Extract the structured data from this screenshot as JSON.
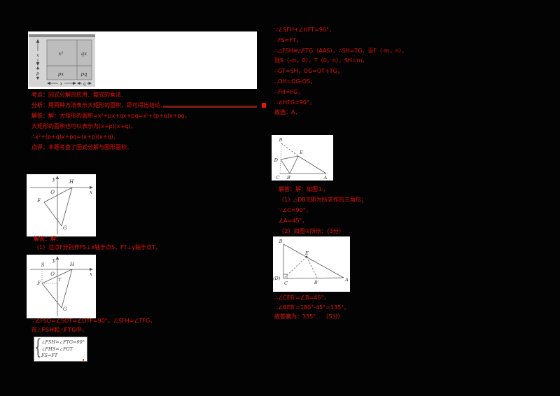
{
  "colors": {
    "background": "#030303",
    "panel": "#ffffff",
    "red_text": "#e8130a",
    "dark_red_head": "#9e150a",
    "rule_red": "#7c1c12",
    "figure_gray_panel": "#d5d5d5",
    "figure_cell_gray": "#bdbdbd",
    "figure_top_strip": "#8a8a8a",
    "diagram_ink": "#565656"
  },
  "left": {
    "figure1": {
      "cells": {
        "tl": "x²",
        "tr": "qx",
        "bl": "px",
        "br": "pq"
      },
      "dims": {
        "side_top": "x",
        "side_bottom": "p",
        "bottom_left": "x",
        "bottom_right": "q"
      }
    },
    "block1": [
      {
        "head": "考点：",
        "rest": "因式分解的应用．整式的乘法．"
      },
      {
        "head": "分析：",
        "rest": "用两种方法表示大矩形的面积，即可得出结论．"
      },
      {
        "head": "解答：",
        "rest": "解：大矩形的面积=x²+px+qx+pq=x²+(p+q)x+pq，"
      },
      {
        "head": "",
        "rest": "大矩形的面积也可以表示为(x+p)(x+q)，"
      },
      {
        "head": "",
        "rest": "∴x²+(p+q)x+pq=(x+p)(x+q)．"
      },
      {
        "head": "点评：",
        "rest": "本题考查了因式分解与图形面积．"
      }
    ],
    "figure2": {
      "labels": {
        "axis_y": "y",
        "axis_x": "x",
        "origin": "O",
        "h": "H",
        "f": "F",
        "g": "G"
      }
    },
    "block2": [
      {
        "head": "解答：",
        "rest": "解："
      },
      {
        "head": "",
        "rest": "（1）过点F分别作FS⊥x轴于点S，FT⊥y轴于点T，"
      }
    ],
    "figure3": {
      "labels": {
        "axis_y": "y",
        "axis_x": "x",
        "origin": "O",
        "s": "S",
        "h": "H",
        "f": "F",
        "t": "T",
        "g": "G"
      }
    },
    "block3": [
      {
        "head": "",
        "rest": "∵∠FSO=∠SOT=∠OTF=90°，∠SFH=∠TFG，"
      },
      {
        "head": "在△FSH和△FTG中，",
        "rest": ""
      }
    ],
    "box": {
      "brace": "{",
      "rows": [
        "∠FSH=∠FTG=90°",
        "∠FHS=∠FGT",
        "FS=FT"
      ],
      "after": "，"
    }
  },
  "right": {
    "block1": [
      {
        "head": "",
        "rest": "∵∠SFH+∠HFT=90°，"
      },
      {
        "head": "",
        "rest": "∴FS=FT，"
      },
      {
        "head": "",
        "rest": "∴△FSH≌△FTG（AAS），∴SH=TG，设F（-m，n），"
      },
      {
        "head": "",
        "rest": "则S（-m，0），T（0，n），SH=m，"
      },
      {
        "head": "",
        "rest": "∴GT=SH，OG=OT+TG，"
      },
      {
        "head": "",
        "rest": "∴OH=OG-OS，"
      },
      {
        "head": "",
        "rest": "∴FH=FG，"
      },
      {
        "head": "",
        "rest": "∴∠HFG=90°，"
      },
      {
        "head": "故选：",
        "rest": "A．"
      }
    ],
    "figure4": {
      "labels": {
        "b": "B",
        "d": "D",
        "e": "E",
        "c": "C",
        "b2": "B′",
        "a": "A"
      }
    },
    "block2": [
      {
        "head": "解答：",
        "rest": "解：如图①，"
      },
      {
        "head": "",
        "rest": "（1）△DB′E即为所求作的三角形；"
      },
      {
        "head": "",
        "rest": "∵∠C=90°，"
      },
      {
        "head": "",
        "rest": "∠A=45°，"
      },
      {
        "head": "（2）",
        "rest": "如图②所示：（3分）"
      }
    ],
    "figure5": {
      "labels": {
        "b": "B",
        "e": "E",
        "d": "(D)",
        "c": "C",
        "b2": "B′",
        "a": "A"
      }
    },
    "block3": [
      {
        "head": "",
        "rest": "∴∠CEB′=∠B=45°，"
      },
      {
        "head": "",
        "rest": "∴∠BEB′=180°-45°=135°，"
      },
      {
        "head": "故答案为：",
        "rest": "135°．",
        "tail": "（5分）"
      }
    ]
  }
}
